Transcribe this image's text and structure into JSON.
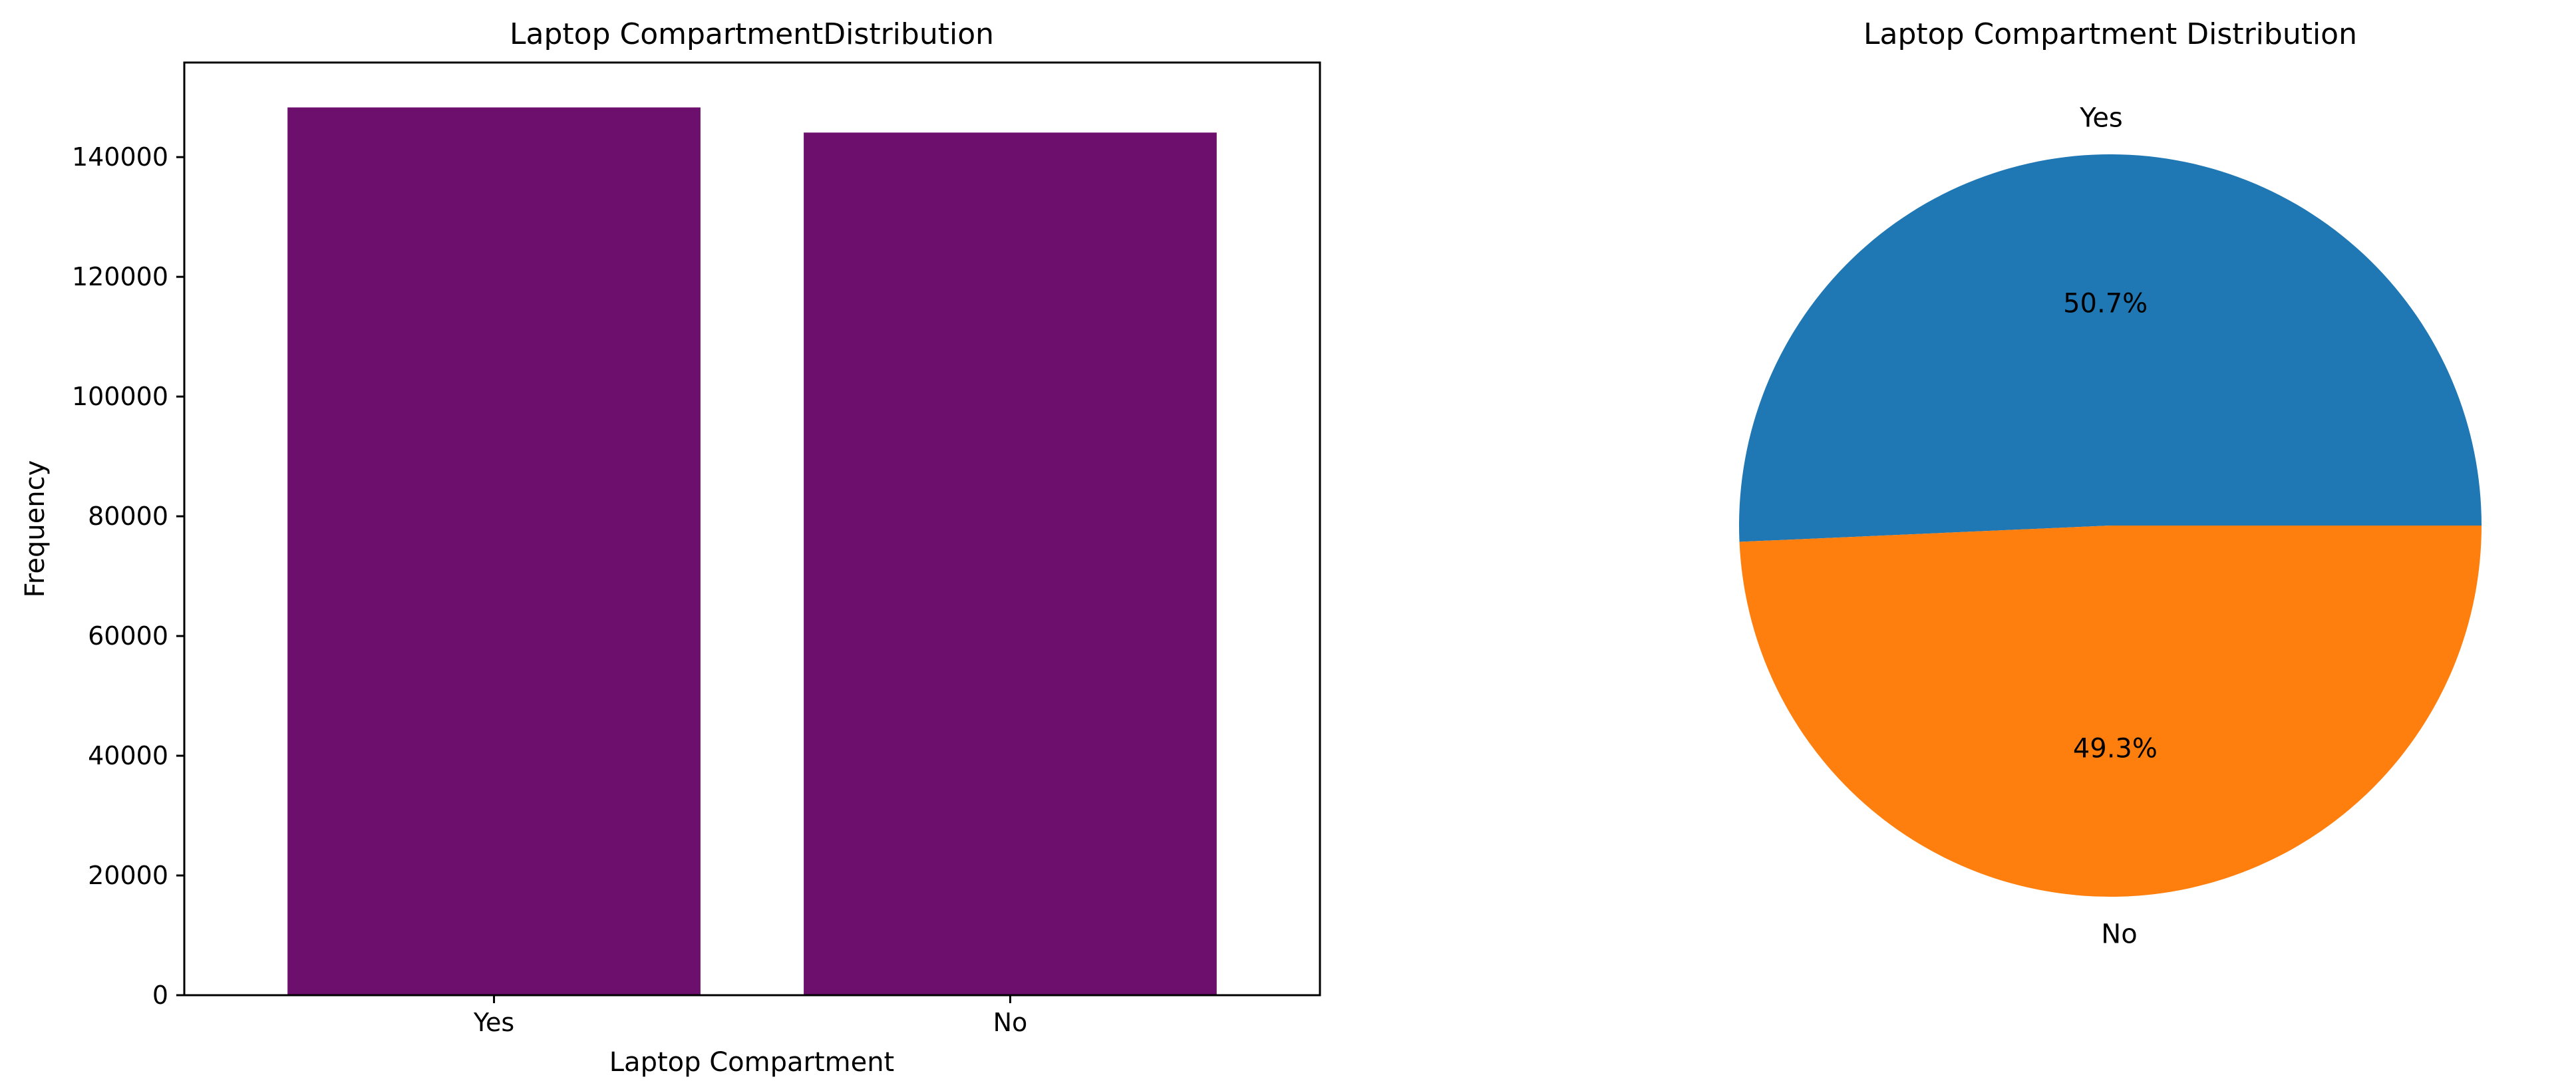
{
  "chart_data": [
    {
      "type": "bar",
      "title": "Laptop CompartmentDistribution",
      "xlabel": "Laptop Compartment",
      "ylabel": "Frequency",
      "categories": [
        "Yes",
        "No"
      ],
      "values": [
        148300,
        144100
      ],
      "ylim": [
        0,
        155800
      ],
      "yticks": [
        0,
        20000,
        40000,
        60000,
        80000,
        100000,
        120000,
        140000
      ],
      "bar_color": "#6d0f6d",
      "grid": false
    },
    {
      "type": "pie",
      "title": "Laptop Compartment Distribution",
      "labels": [
        "Yes",
        "No"
      ],
      "values": [
        50.7,
        49.3
      ],
      "percent_labels": [
        "50.7%",
        "49.3%"
      ],
      "colors": [
        "#1f77b4",
        "#ff7f0e"
      ]
    }
  ]
}
